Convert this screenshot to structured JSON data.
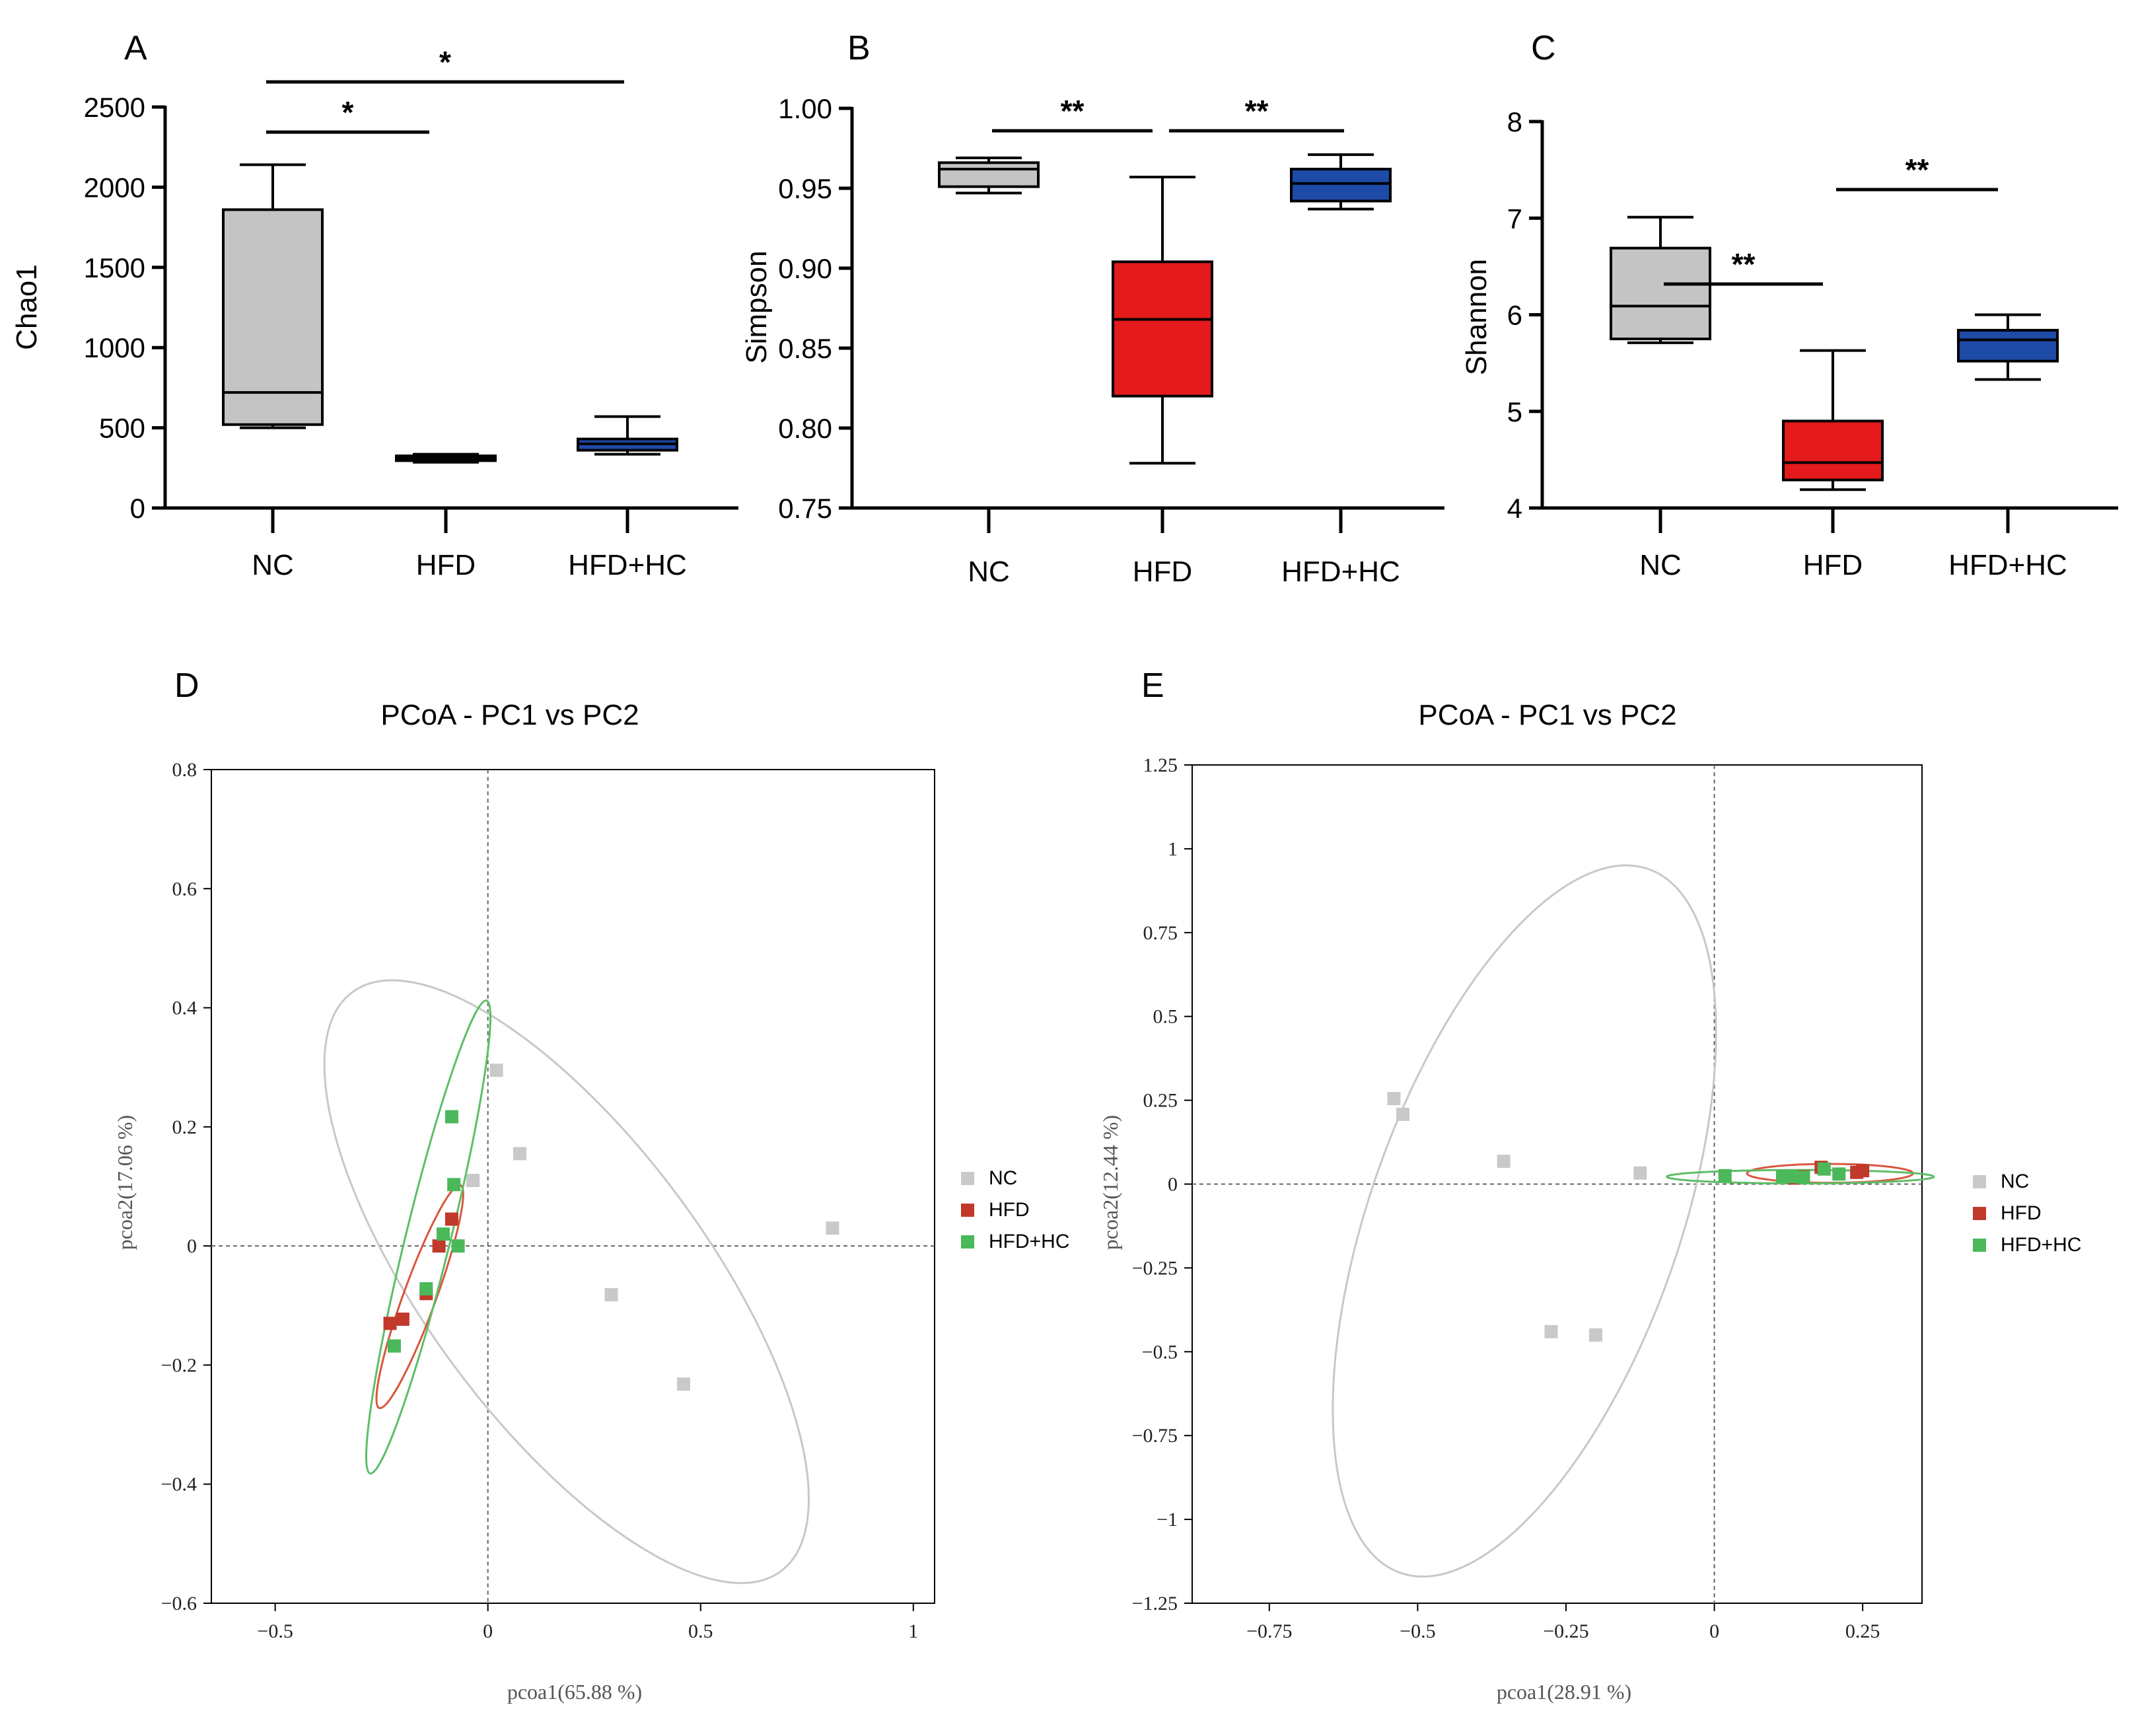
{
  "colors": {
    "nc": "#c4c4c4",
    "hfd": "#e41a1c",
    "hfdhc": "#1e4aa8",
    "pcoa_nc": "#c9c9c9",
    "pcoa_hfd": "#c0392b",
    "pcoa_hfdhc": "#4bb85a",
    "pcoa_nc_ellipse": "#c8c8c8",
    "pcoa_hfd_ellipse": "#d9573d",
    "pcoa_hfdhc_ellipse": "#5dbe66"
  },
  "chart_data": [
    {
      "panel": "A",
      "type": "box",
      "ylabel": "Chao1",
      "ylim": [
        0,
        2500
      ],
      "yticks": [
        "0",
        "500",
        "1000",
        "1500",
        "2000",
        "2500"
      ],
      "categories": [
        "NC",
        "HFD",
        "HFD+HC"
      ],
      "boxes": [
        {
          "name": "NC",
          "min": 500,
          "q1": 520,
          "median": 720,
          "q3": 1860,
          "max": 2140
        },
        {
          "name": "HFD",
          "min": 285,
          "q1": 295,
          "median": 310,
          "q3": 325,
          "max": 335
        },
        {
          "name": "HFD+HC",
          "min": 335,
          "q1": 360,
          "median": 400,
          "q3": 430,
          "max": 570
        }
      ],
      "significance": [
        {
          "from": "NC",
          "to": "HFD",
          "label": "*",
          "level": 1
        },
        {
          "from": "NC",
          "to": "HFD+HC",
          "label": "*",
          "level": 2
        }
      ]
    },
    {
      "panel": "B",
      "type": "box",
      "ylabel": "Simpson",
      "ylim": [
        0.75,
        1.0
      ],
      "yticks": [
        "0.75",
        "0.80",
        "0.85",
        "0.90",
        "0.95",
        "1.00"
      ],
      "categories": [
        "NC",
        "HFD",
        "HFD+HC"
      ],
      "boxes": [
        {
          "name": "NC",
          "min": 0.947,
          "q1": 0.951,
          "median": 0.962,
          "q3": 0.966,
          "max": 0.969
        },
        {
          "name": "HFD",
          "min": 0.778,
          "q1": 0.82,
          "median": 0.868,
          "q3": 0.904,
          "max": 0.957
        },
        {
          "name": "HFD+HC",
          "min": 0.937,
          "q1": 0.942,
          "median": 0.953,
          "q3": 0.962,
          "max": 0.971
        }
      ],
      "significance": [
        {
          "from": "NC",
          "to": "HFD",
          "label": "**",
          "level": 1
        },
        {
          "from": "HFD",
          "to": "HFD+HC",
          "label": "**",
          "level": 1
        }
      ]
    },
    {
      "panel": "C",
      "type": "box",
      "ylabel": "Shannon",
      "ylim": [
        4,
        8
      ],
      "yticks": [
        "4",
        "5",
        "6",
        "7",
        "8"
      ],
      "categories": [
        "NC",
        "HFD",
        "HFD+HC"
      ],
      "boxes": [
        {
          "name": "NC",
          "min": 5.71,
          "q1": 5.75,
          "median": 6.09,
          "q3": 6.69,
          "max": 7.01
        },
        {
          "name": "HFD",
          "min": 4.19,
          "q1": 4.29,
          "median": 4.47,
          "q3": 4.9,
          "max": 5.63
        },
        {
          "name": "HFD+HC",
          "min": 5.33,
          "q1": 5.52,
          "median": 5.74,
          "q3": 5.84,
          "max": 6.0
        }
      ],
      "significance": [
        {
          "from": "NC",
          "to": "HFD",
          "label": "**",
          "level": 2
        },
        {
          "from": "HFD",
          "to": "HFD+HC",
          "label": "**",
          "level": 1
        }
      ]
    },
    {
      "panel": "D",
      "type": "scatter",
      "title": "PCoA - PC1 vs PC2",
      "xlabel": "pcoa1(65.88 %)",
      "ylabel": "pcoa2(17.06 %)",
      "xlim": [
        -0.65,
        1.05
      ],
      "ylim": [
        -0.6,
        0.8
      ],
      "xticks": [
        -0.5,
        0,
        0.5,
        1
      ],
      "xtick_labels": [
        "−0.5",
        "0",
        "0.5",
        "1"
      ],
      "yticks": [
        -0.6,
        -0.4,
        -0.2,
        0,
        0.2,
        0.4,
        0.6,
        0.8
      ],
      "ytick_labels": [
        "−0.6",
        "−0.4",
        "−0.2",
        "0",
        "0.2",
        "0.4",
        "0.6",
        "0.8"
      ],
      "legend": [
        "NC",
        "HFD",
        "HFD+HC"
      ],
      "series": [
        {
          "name": "NC",
          "points": [
            [
              0.02,
              0.295
            ],
            [
              0.075,
              0.155
            ],
            [
              -0.035,
              0.11
            ],
            [
              0.81,
              0.03
            ],
            [
              0.29,
              -0.082
            ],
            [
              0.46,
              -0.232
            ]
          ]
        },
        {
          "name": "HFD",
          "points": [
            [
              -0.085,
              0.045
            ],
            [
              -0.115,
              0.0
            ],
            [
              -0.145,
              -0.08
            ],
            [
              -0.2,
              -0.123
            ],
            [
              -0.23,
              -0.13
            ]
          ]
        },
        {
          "name": "HFD+HC",
          "points": [
            [
              -0.085,
              0.217
            ],
            [
              -0.08,
              0.103
            ],
            [
              -0.105,
              0.02
            ],
            [
              -0.07,
              0.0
            ],
            [
              -0.145,
              -0.072
            ],
            [
              -0.22,
              -0.168
            ]
          ]
        }
      ],
      "ellipses": [
        {
          "name": "NC",
          "cx": 0.185,
          "cy": -0.06,
          "rx": 0.7,
          "ry": 0.27,
          "angle_deg": -44
        },
        {
          "name": "HFD",
          "cx": -0.16,
          "cy": -0.085,
          "rx": 0.21,
          "ry": 0.035,
          "angle_deg": 63
        },
        {
          "name": "HFD+HC",
          "cx": -0.14,
          "cy": 0.015,
          "rx": 0.42,
          "ry": 0.05,
          "angle_deg": 71
        }
      ]
    },
    {
      "panel": "E",
      "type": "scatter",
      "title": "PCoA - PC1 vs PC2",
      "xlabel": "pcoa1(28.91 %)",
      "ylabel": "pcoa2(12.44 %)",
      "xlim": [
        -0.88,
        0.35
      ],
      "ylim": [
        -1.25,
        1.25
      ],
      "xticks": [
        -0.75,
        -0.5,
        -0.25,
        0,
        0.25
      ],
      "xtick_labels": [
        "−0.75",
        "−0.5",
        "−0.25",
        "0",
        "0.25"
      ],
      "yticks": [
        -1.25,
        -1,
        -0.75,
        -0.5,
        -0.25,
        0,
        0.25,
        0.5,
        0.75,
        1,
        1.25
      ],
      "ytick_labels": [
        "−1.25",
        "−1",
        "−0.75",
        "−0.5",
        "−0.25",
        "0",
        "0.25",
        "0.5",
        "0.75",
        "1",
        "1.25"
      ],
      "legend": [
        "NC",
        "HFD",
        "HFD+HC"
      ],
      "series": [
        {
          "name": "NC",
          "points": [
            [
              -0.54,
              0.255
            ],
            [
              -0.525,
              0.208
            ],
            [
              -0.355,
              0.068
            ],
            [
              -0.125,
              0.033
            ],
            [
              -0.275,
              -0.44
            ],
            [
              -0.2,
              -0.45
            ]
          ]
        },
        {
          "name": "HFD",
          "points": [
            [
              0.18,
              0.05
            ],
            [
              0.25,
              0.04
            ],
            [
              0.24,
              0.035
            ],
            [
              0.15,
              0.022
            ],
            [
              0.135,
              0.018
            ]
          ]
        },
        {
          "name": "HFD+HC",
          "points": [
            [
              0.018,
              0.025
            ],
            [
              0.115,
              0.023
            ],
            [
              0.13,
              0.022
            ],
            [
              0.185,
              0.045
            ],
            [
              0.21,
              0.03
            ],
            [
              0.15,
              0.02
            ]
          ]
        }
      ],
      "ellipses": [
        {
          "name": "NC",
          "cx": -0.32,
          "cy": -0.11,
          "rx": 0.29,
          "ry": 0.88,
          "angle_deg": -32
        },
        {
          "name": "HFD",
          "cx": 0.195,
          "cy": 0.032,
          "rx": 0.14,
          "ry": 0.028,
          "angle_deg": 0
        },
        {
          "name": "HFD+HC",
          "cx": 0.145,
          "cy": 0.022,
          "rx": 0.225,
          "ry": 0.02,
          "angle_deg": 0
        }
      ]
    }
  ],
  "panel_labels": [
    "A",
    "B",
    "C",
    "D",
    "E"
  ]
}
